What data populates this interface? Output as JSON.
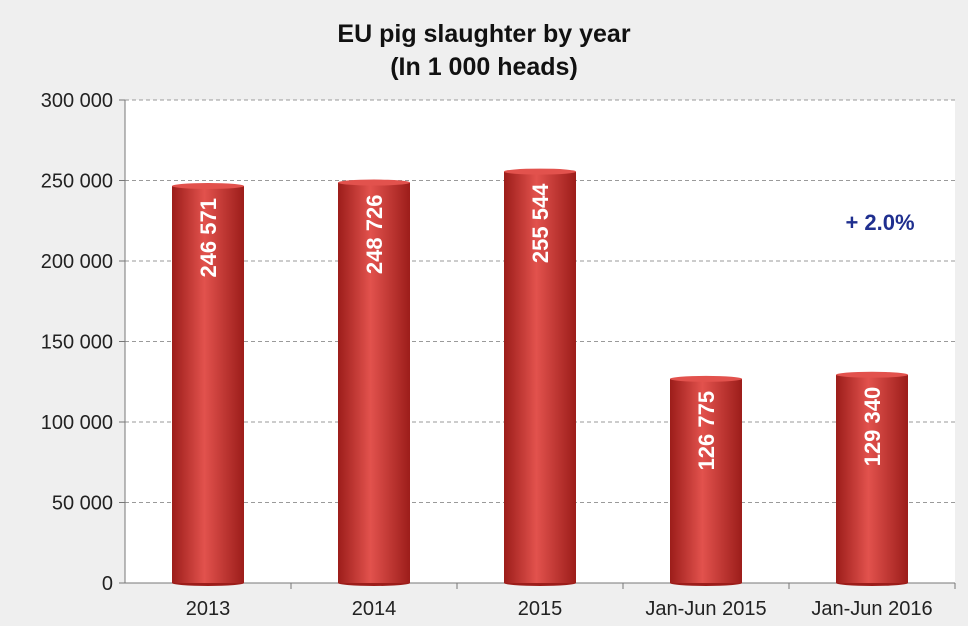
{
  "chart_data": {
    "type": "bar",
    "title": "EU pig slaughter by year",
    "subtitle": "(In 1 000 heads)",
    "categories": [
      "2013",
      "2014",
      "2015",
      "Jan-Jun 2015",
      "Jan-Jun 2016"
    ],
    "values": [
      246571,
      248726,
      255544,
      126775,
      129340
    ],
    "value_labels": [
      "246 571",
      "248 726",
      "255 544",
      "126 775",
      "129 340"
    ],
    "ylim": [
      0,
      300000
    ],
    "y_ticks": [
      0,
      50000,
      100000,
      150000,
      200000,
      250000,
      300000
    ],
    "y_tick_labels": [
      "0",
      "50 000",
      "100 000",
      "150 000",
      "200 000",
      "250 000",
      "300 000"
    ],
    "grid": true,
    "annotations": [
      {
        "text": "+ 2.0%",
        "category": "Jan-Jun 2016"
      }
    ],
    "colors": {
      "bar": "#c9302c",
      "bar_light": "#e2524d",
      "bar_dark": "#9c1d1a",
      "annotation": "#1f2f8f",
      "grid": "#9a9a9a",
      "plot_bg": "#ffffff",
      "chart_bg": "#efefef"
    }
  }
}
